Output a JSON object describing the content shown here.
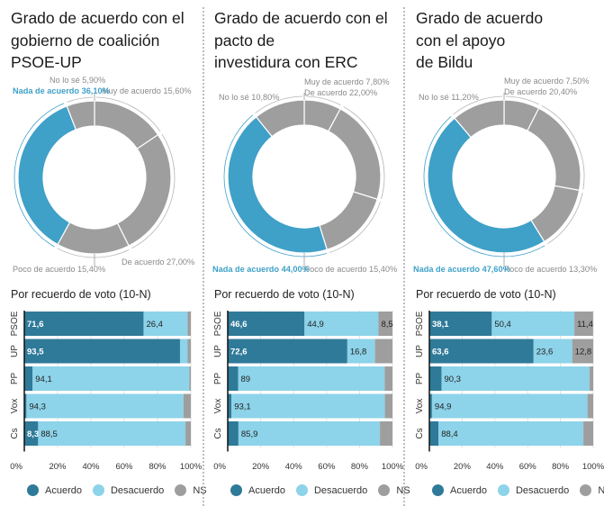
{
  "colors": {
    "nada": "#3fa0c8",
    "grey_slice": "#9e9e9e",
    "acuerdo": "#2f7a99",
    "desacuerdo": "#8dd3e9",
    "ns": "#9e9e9e",
    "label_grey": "#8a8a8a",
    "label_blue": "#3fa0c8"
  },
  "legend": [
    {
      "key": "acuerdo",
      "label": "Acuerdo"
    },
    {
      "key": "desacuerdo",
      "label": "Desacuerdo"
    },
    {
      "key": "ns",
      "label": "NS"
    }
  ],
  "chart_data": [
    {
      "type": "pie",
      "title": "Grado de acuerdo con el\ngobierno de coalición\nPSOE-UP",
      "slices": [
        {
          "label": "Muy de acuerdo",
          "value": 15.6,
          "text": "Muy de acuerdo 15,60%"
        },
        {
          "label": "De acuerdo",
          "value": 27.0,
          "text": "De acuerdo 27,00%"
        },
        {
          "label": "Poco de acuerdo",
          "value": 15.4,
          "text": "Poco de acuerdo 15,40%"
        },
        {
          "label": "Nada de acuerdo",
          "value": 36.1,
          "text": "Nada de acuerdo 36,10%",
          "highlight": true
        },
        {
          "label": "No lo sé",
          "value": 5.9,
          "text": "No lo sé 5,90%"
        }
      ]
    },
    {
      "type": "pie",
      "title": "Grado de acuerdo con el\npacto de\ninvestidura con ERC",
      "slices": [
        {
          "label": "Muy de acuerdo",
          "value": 7.8,
          "text": "Muy de acuerdo 7,80%"
        },
        {
          "label": "De acuerdo",
          "value": 22.0,
          "text": "De acuerdo 22,00%"
        },
        {
          "label": "Poco de acuerdo",
          "value": 15.4,
          "text": "Poco de acuerdo 15,40%"
        },
        {
          "label": "Nada de acuerdo",
          "value": 44.0,
          "text": "Nada de acuerdo 44,00%",
          "highlight": true
        },
        {
          "label": "No lo sé",
          "value": 10.8,
          "text": "No lo sé 10,80%"
        }
      ]
    },
    {
      "type": "pie",
      "title": "Grado de acuerdo\ncon el apoyo\nde Bildu",
      "slices": [
        {
          "label": "Muy de acuerdo",
          "value": 7.5,
          "text": "Muy de acuerdo 7,50%"
        },
        {
          "label": "De acuerdo",
          "value": 20.4,
          "text": "De acuerdo 20,40%"
        },
        {
          "label": "Poco de acuerdo",
          "value": 13.3,
          "text": "Poco de acuerdo 13,30%"
        },
        {
          "label": "Nada de acuerdo",
          "value": 47.6,
          "text": "Nada de acuerdo 47,60%",
          "highlight": true
        },
        {
          "label": "No lo sé",
          "value": 11.2,
          "text": "No lo sé 11,20%"
        }
      ]
    },
    {
      "type": "bar",
      "stacked": true,
      "orientation": "horizontal",
      "title": "Por recuerdo de voto (10-N)",
      "categories": [
        "PSOE",
        "UP",
        "PP",
        "Vox",
        "Cs"
      ],
      "series": [
        {
          "name": "Acuerdo",
          "values": [
            71.6,
            93.5,
            5.0,
            1.3,
            8.3
          ],
          "labels": [
            "71,6",
            "93,5",
            "",
            "",
            "8,3"
          ]
        },
        {
          "name": "Desacuerdo",
          "values": [
            26.4,
            4.6,
            94.1,
            94.3,
            88.5
          ],
          "labels": [
            "26,4",
            "",
            "94,1",
            "94,3",
            "88,5"
          ]
        },
        {
          "name": "NS",
          "values": [
            2.0,
            1.9,
            0.9,
            4.4,
            3.2
          ],
          "labels": [
            "",
            "",
            "",
            "",
            ""
          ]
        }
      ],
      "xticks": [
        "0%",
        "20%",
        "40%",
        "60%",
        "80%",
        "100%"
      ],
      "xlim": [
        0,
        100
      ]
    },
    {
      "type": "bar",
      "stacked": true,
      "orientation": "horizontal",
      "title": "Por recuerdo de voto (10-N)",
      "categories": [
        "PSOE",
        "UP",
        "PP",
        "Vox",
        "Cs"
      ],
      "series": [
        {
          "name": "Acuerdo",
          "values": [
            46.6,
            72.6,
            6.3,
            2.3,
            6.5
          ],
          "labels": [
            "46,6",
            "72,6",
            "",
            "",
            ""
          ]
        },
        {
          "name": "Desacuerdo",
          "values": [
            44.9,
            16.8,
            89.0,
            93.1,
            85.9
          ],
          "labels": [
            "44,9",
            "16,8",
            "89",
            "93,1",
            "85,9"
          ]
        },
        {
          "name": "NS",
          "values": [
            8.5,
            10.6,
            4.7,
            4.6,
            7.6
          ],
          "labels": [
            "8,5",
            "",
            "",
            "",
            ""
          ]
        }
      ],
      "xticks": [
        "0%",
        "20%",
        "40%",
        "60%",
        "80%",
        "100%"
      ],
      "xlim": [
        0,
        100
      ]
    },
    {
      "type": "bar",
      "stacked": true,
      "orientation": "horizontal",
      "title": "Por recuerdo de voto (10-N)",
      "categories": [
        "PSOE",
        "UP",
        "PP",
        "Vox",
        "Cs"
      ],
      "series": [
        {
          "name": "Acuerdo",
          "values": [
            38.1,
            63.6,
            7.4,
            1.6,
            5.6
          ],
          "labels": [
            "38,1",
            "63,6",
            "",
            "",
            ""
          ]
        },
        {
          "name": "Desacuerdo",
          "values": [
            50.4,
            23.6,
            90.3,
            94.9,
            88.4
          ],
          "labels": [
            "50,4",
            "23,6",
            "90,3",
            "94,9",
            "88,4"
          ]
        },
        {
          "name": "NS",
          "values": [
            11.4,
            12.8,
            2.3,
            3.5,
            6.0
          ],
          "labels": [
            "11,4",
            "12,8",
            "",
            "",
            ""
          ]
        }
      ],
      "xticks": [
        "0%",
        "20%",
        "40%",
        "60%",
        "80%",
        "100%"
      ],
      "xlim": [
        0,
        100
      ]
    }
  ]
}
